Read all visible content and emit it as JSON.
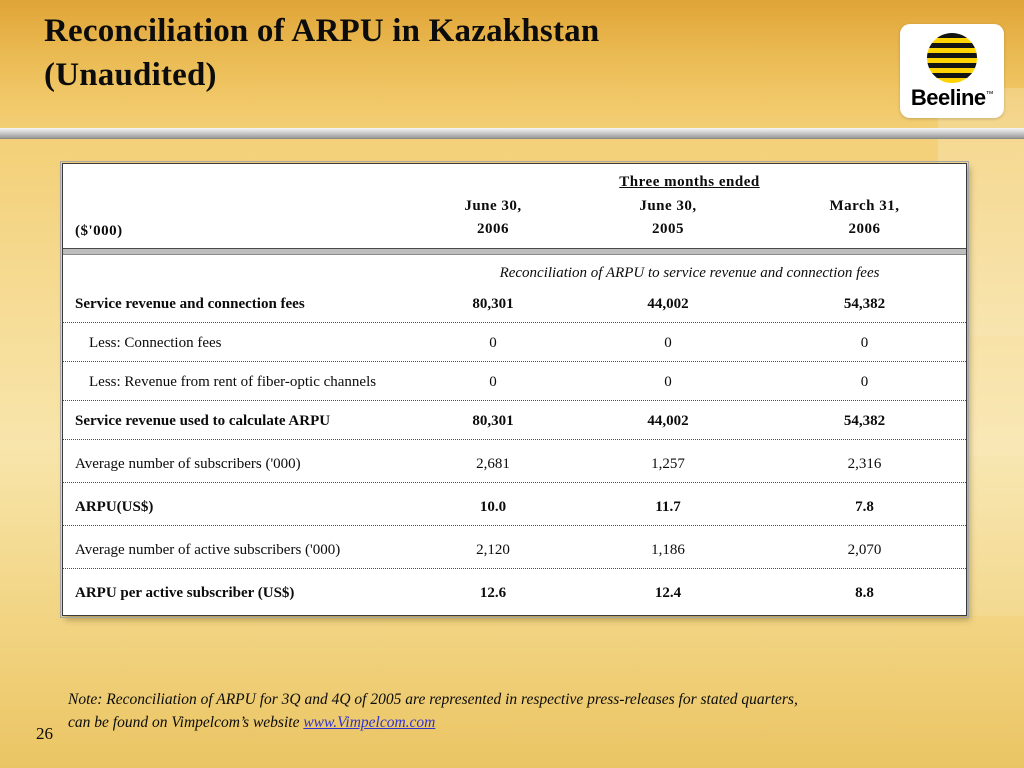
{
  "slide": {
    "title": "Reconciliation of ARPU in Kazakhstan\n(Unaudited)",
    "page_number": "26",
    "note_line1": "Note: Reconciliation of ARPU for 3Q and 4Q of 2005 are represented in respective press-releases for stated quarters,",
    "note_line2": "can be found on Vimpelcom’s website ",
    "note_link": "www.Vimpelcom.com"
  },
  "logo": {
    "brand": "Beeline",
    "tm": "™"
  },
  "table": {
    "header_group": "Three months ended",
    "row_label_header": "($'000)",
    "columns": [
      "June 30,\n2006",
      "June 30,\n2005",
      "March 31,\n2006"
    ],
    "subtitle": "Reconciliation of ARPU to service revenue and connection fees",
    "rows": [
      {
        "label": "Service revenue and connection fees",
        "values": [
          "80,301",
          "44,002",
          "54,382"
        ]
      },
      {
        "label": "Less: Connection fees",
        "values": [
          "0",
          "0",
          "0"
        ]
      },
      {
        "label": "Less: Revenue from rent of fiber-optic channels",
        "values": [
          "0",
          "0",
          "0"
        ]
      },
      {
        "label": "Service revenue used to calculate ARPU",
        "values": [
          "80,301",
          "44,002",
          "54,382"
        ]
      },
      {
        "label": "Average number of subscribers ('000)",
        "values": [
          "2,681",
          "1,257",
          "2,316"
        ]
      },
      {
        "label": "ARPU(US$)",
        "values": [
          "10.0",
          "11.7",
          "7.8"
        ]
      },
      {
        "label": "Average number of active subscribers ('000)",
        "values": [
          "2,120",
          "1,186",
          "2,070"
        ]
      },
      {
        "label": "ARPU per active subscriber (US$)",
        "values": [
          "12.6",
          "12.4",
          "8.8"
        ]
      }
    ]
  }
}
